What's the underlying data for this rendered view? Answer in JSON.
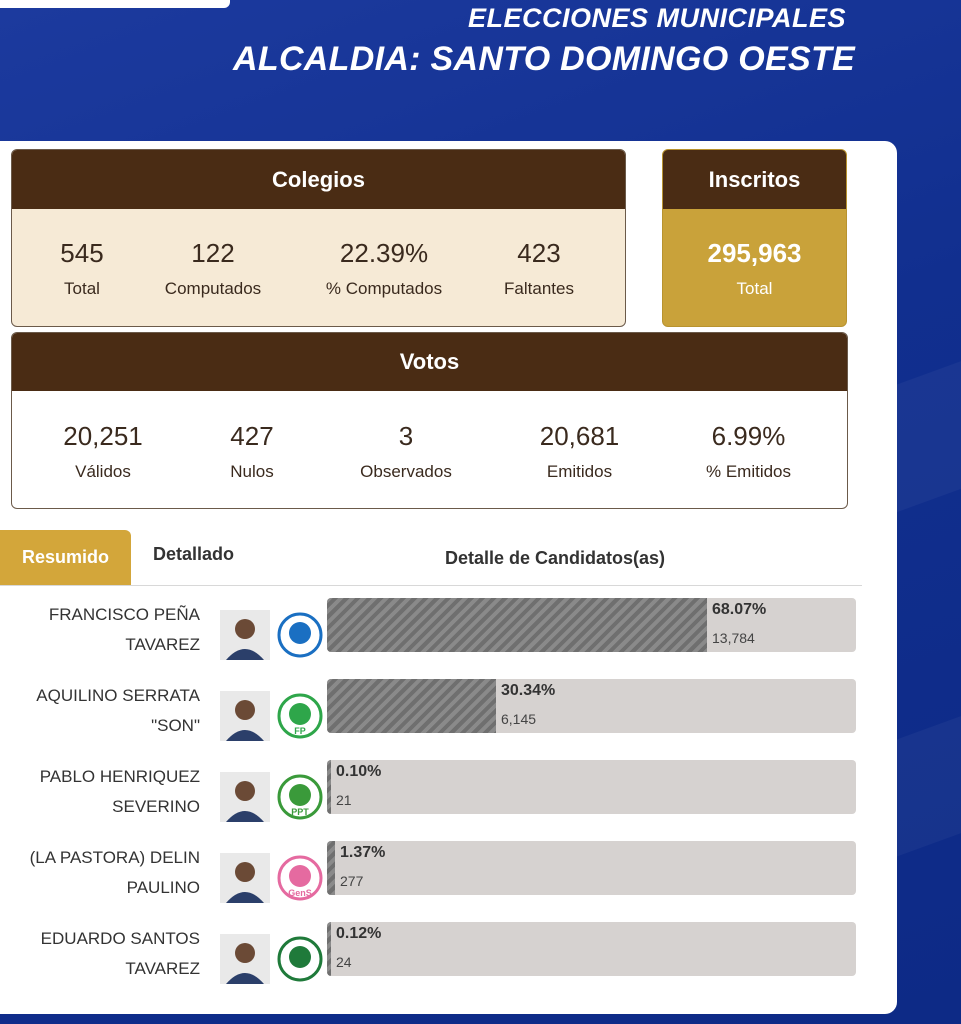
{
  "header": {
    "subtitle": "ELECCIONES MUNICIPALES",
    "title": "ALCALDIA: SANTO DOMINGO OESTE"
  },
  "colegios": {
    "title": "Colegios",
    "stats": [
      {
        "value": "545",
        "label": "Total"
      },
      {
        "value": "122",
        "label": "Computados"
      },
      {
        "value": "22.39%",
        "label": "% Computados"
      },
      {
        "value": "423",
        "label": "Faltantes"
      }
    ]
  },
  "inscritos": {
    "title": "Inscritos",
    "value": "295,963",
    "label": "Total"
  },
  "votos": {
    "title": "Votos",
    "stats": [
      {
        "value": "20,251",
        "label": "Válidos"
      },
      {
        "value": "427",
        "label": "Nulos"
      },
      {
        "value": "3",
        "label": "Observados"
      },
      {
        "value": "20,681",
        "label": "Emitidos"
      },
      {
        "value": "6.99%",
        "label": "% Emitidos"
      }
    ]
  },
  "tabs": {
    "resumido": "Resumido",
    "detallado": "Detallado",
    "detalle_title": "Detalle de Candidatos(as)"
  },
  "candidates": [
    {
      "line1": "FRANCISCO PEÑA",
      "line2": "TAVAREZ",
      "percent_label": "68.07%",
      "votes": "13,784",
      "share": 0.6807,
      "party_logo": "pld-logo-icon",
      "logo_color": "#1a6fc2"
    },
    {
      "line1": "AQUILINO SERRATA",
      "line2": "\"SON\"",
      "percent_label": "30.34%",
      "votes": "6,145",
      "share": 0.3034,
      "party_logo": "fp-logo-icon",
      "logo_color": "#2ea64a",
      "logo_text": "FP"
    },
    {
      "line1": "PABLO HENRIQUEZ",
      "line2": "SEVERINO",
      "percent_label": "0.10%",
      "votes": "21",
      "share": 0.001,
      "party_logo": "ppt-map-logo-icon",
      "logo_color": "#3a9a3a",
      "logo_text": "PPT"
    },
    {
      "line1": "(LA PASTORA) DELIN",
      "line2": "PAULINO",
      "percent_label": "1.37%",
      "votes": "277",
      "share": 0.0137,
      "party_logo": "dove-logo-icon",
      "logo_color": "#e56aa0",
      "logo_text": "GenS"
    },
    {
      "line1": "EDUARDO SANTOS",
      "line2": "TAVAREZ",
      "percent_label": "0.12%",
      "votes": "24",
      "share": 0.0012,
      "party_logo": "globe-logo-icon",
      "logo_color": "#1f7a3a"
    }
  ],
  "colors": {
    "brown_header": "#4a2c14",
    "cream_bg": "#f6ead6",
    "gold": "#c9a23a",
    "bar_track": "#d6d2d0",
    "bar_fill": "#7d7d7d",
    "background_blue": "#152f8c"
  }
}
